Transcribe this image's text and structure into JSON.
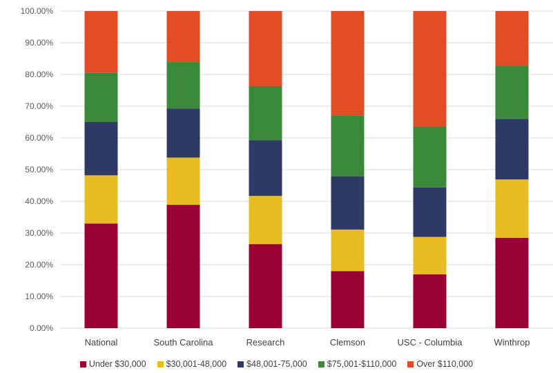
{
  "chart_data": {
    "type": "bar",
    "stacked": true,
    "categories": [
      "National",
      "South Carolina",
      "Research",
      "Clemson",
      "USC - Columbia",
      "Winthrop"
    ],
    "ylim": [
      0,
      100
    ],
    "y_tick_labels": [
      "0.00%",
      "10.00%",
      "20.00%",
      "30.00%",
      "40.00%",
      "50.00%",
      "60.00%",
      "70.00%",
      "80.00%",
      "90.00%",
      "100.00%"
    ],
    "grid": true,
    "legend_position": "bottom",
    "series": [
      {
        "name": "Under $30,000",
        "color": "#990033",
        "values": [
          33.0,
          38.9,
          26.5,
          18.0,
          17.0,
          28.5
        ]
      },
      {
        "name": "$30,001-48,000",
        "color": "#e8bd23",
        "values": [
          15.2,
          14.9,
          15.2,
          13.1,
          11.8,
          18.4
        ]
      },
      {
        "name": "$48,001-75,000",
        "color": "#2e3966",
        "values": [
          16.8,
          15.5,
          17.6,
          16.8,
          15.6,
          19.1
        ]
      },
      {
        "name": "$75,001-$110,000",
        "color": "#3a8a3a",
        "values": [
          15.6,
          14.6,
          17.0,
          19.2,
          19.2,
          16.7
        ]
      },
      {
        "name": "Over $110,000",
        "color": "#e34d26",
        "values": [
          19.4,
          16.1,
          23.7,
          32.9,
          36.4,
          17.3
        ]
      }
    ]
  }
}
